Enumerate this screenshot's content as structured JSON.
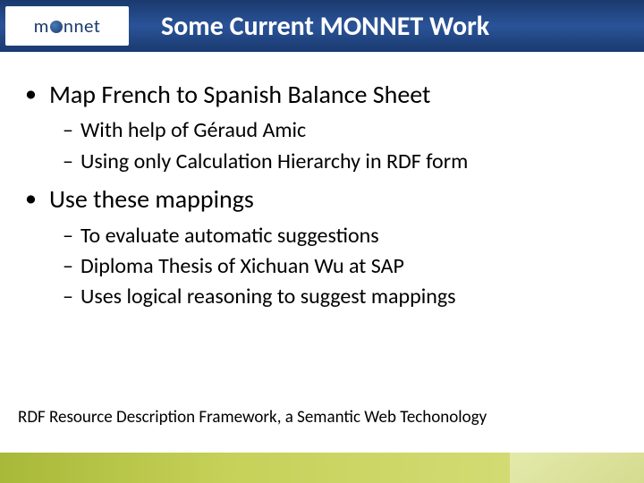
{
  "header": {
    "logo_prefix": "m",
    "logo_suffix": "nnet",
    "title": "Some Current MONNET Work",
    "bar_gradient_top": "#1a3a6e",
    "bar_gradient_mid": "#2a5398",
    "title_color": "#ffffff",
    "title_fontsize": 30
  },
  "content": {
    "bullets": [
      {
        "text": "Map French to Spanish Balance Sheet",
        "sub": [
          "With help of Géraud Amic",
          "Using only Calculation Hierarchy in RDF form"
        ]
      },
      {
        "text": "Use these mappings",
        "sub": [
          "To evaluate automatic suggestions",
          "Diploma Thesis of Xichuan Wu at SAP",
          "Uses logical reasoning to suggest mappings"
        ]
      }
    ],
    "l1_fontsize": 28,
    "l2_fontsize": 24,
    "text_color": "#000000",
    "l1_marker": "•",
    "l2_marker": "–"
  },
  "footer": {
    "note": "RDF Resource Description Framework, a Semantic Web Techonology",
    "note_fontsize": 19,
    "bar_color_left": "#a8b838",
    "bar_color_right": "#d8e080"
  }
}
